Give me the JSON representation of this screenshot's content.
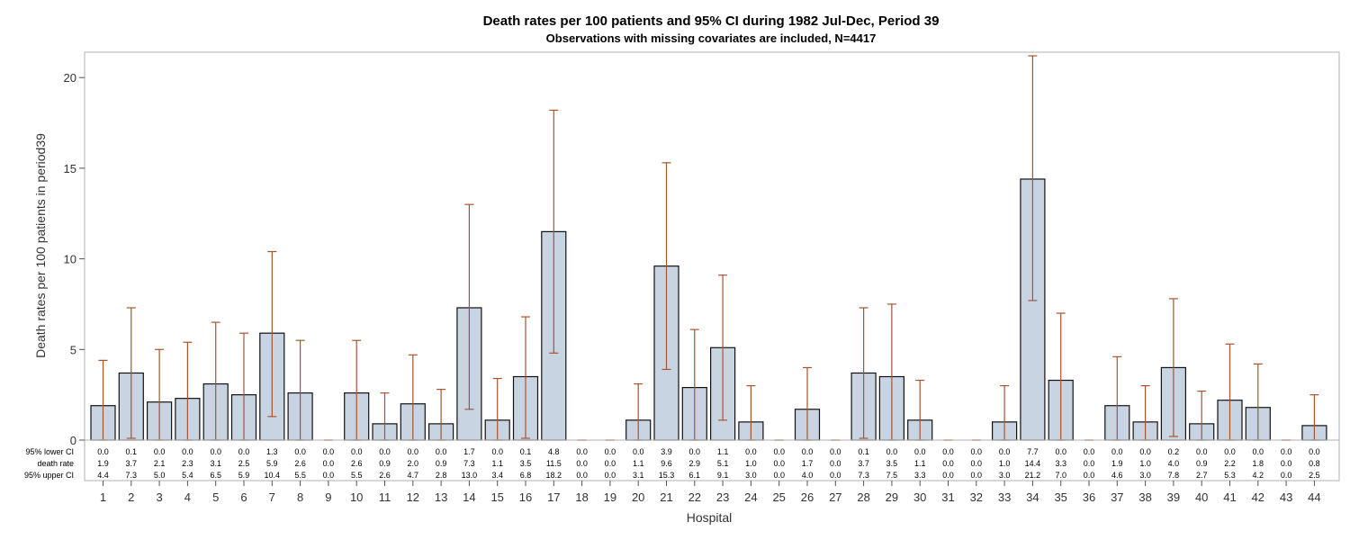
{
  "chart_data": {
    "type": "bar",
    "title": "Death rates per 100 patients and 95% CI during 1982 Jul-Dec, Period 39",
    "subtitle": "Observations with missing covariates are included, N=4417",
    "xlabel": "Hospital",
    "ylabel": "Death rates per 100 patients in period39",
    "ylim": [
      0,
      21.5
    ],
    "yticks": [
      0,
      5,
      10,
      15,
      20
    ],
    "categories": [
      "1",
      "2",
      "3",
      "4",
      "5",
      "6",
      "7",
      "8",
      "9",
      "10",
      "11",
      "12",
      "13",
      "14",
      "15",
      "16",
      "17",
      "18",
      "19",
      "20",
      "21",
      "22",
      "23",
      "24",
      "25",
      "26",
      "27",
      "28",
      "29",
      "30",
      "31",
      "32",
      "33",
      "34",
      "35",
      "36",
      "37",
      "38",
      "39",
      "40",
      "41",
      "42",
      "43",
      "44"
    ],
    "lower_ci": [
      0.0,
      0.1,
      0.0,
      0.0,
      0.0,
      0.0,
      1.3,
      0.0,
      0.0,
      0.0,
      0.0,
      0.0,
      0.0,
      1.7,
      0.0,
      0.1,
      4.8,
      0.0,
      0.0,
      0.0,
      3.9,
      0.0,
      1.1,
      0.0,
      0.0,
      0.0,
      0.0,
      0.1,
      0.0,
      0.0,
      0.0,
      0.0,
      0.0,
      7.7,
      0.0,
      0.0,
      0.0,
      0.0,
      0.2,
      0.0,
      0.0,
      0.0,
      0.0,
      0.0
    ],
    "values": [
      1.9,
      3.7,
      2.1,
      2.3,
      3.1,
      2.5,
      5.9,
      2.6,
      0.0,
      2.6,
      0.9,
      2.0,
      0.9,
      7.3,
      1.1,
      3.5,
      11.5,
      0.0,
      0.0,
      1.1,
      9.6,
      2.9,
      5.1,
      1.0,
      0.0,
      1.7,
      0.0,
      3.7,
      3.5,
      1.1,
      0.0,
      0.0,
      1.0,
      14.4,
      3.3,
      0.0,
      1.9,
      1.0,
      4.0,
      0.9,
      2.2,
      1.8,
      0.0,
      0.8
    ],
    "upper_ci": [
      4.4,
      7.3,
      5.0,
      5.4,
      6.5,
      5.9,
      10.4,
      5.5,
      0.0,
      5.5,
      2.6,
      4.7,
      2.8,
      13.0,
      3.4,
      6.8,
      18.2,
      0.0,
      0.0,
      3.1,
      15.3,
      6.1,
      9.1,
      3.0,
      0.0,
      4.0,
      0.0,
      7.3,
      7.5,
      3.3,
      0.0,
      0.0,
      3.0,
      21.2,
      7.0,
      0.0,
      4.6,
      3.0,
      7.8,
      2.7,
      5.3,
      4.2,
      0.0,
      2.5
    ],
    "table_rows": [
      {
        "label": "95% lower CI",
        "key": "lower_ci"
      },
      {
        "label": "death rate",
        "key": "values"
      },
      {
        "label": "95% upper CI",
        "key": "upper_ci"
      }
    ],
    "colors": {
      "bar_fill": "#c9d4e3",
      "bar_stroke": "#111111",
      "error_bar": "#a9542c",
      "frame": "#b0b0b0"
    },
    "grid": false
  }
}
